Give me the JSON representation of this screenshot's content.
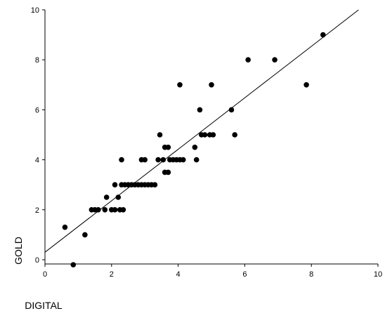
{
  "chart_data": {
    "type": "scatter",
    "title": "",
    "xlabel": "DIGITAL",
    "ylabel": "GOLD",
    "xlim": [
      0,
      10
    ],
    "ylim": [
      0,
      10
    ],
    "xticks": [
      "0",
      "2",
      "4",
      "6",
      "8",
      "10"
    ],
    "yticks": [
      "0",
      "2",
      "4",
      "6",
      "8",
      "10"
    ],
    "grid": false,
    "legend": "none",
    "marker_color": "#000000",
    "fit_line": {
      "intercept": 0.3,
      "slope": 1.03
    },
    "points": [
      {
        "x": 0.6,
        "y": 1.3
      },
      {
        "x": 0.85,
        "y": -0.2
      },
      {
        "x": 1.2,
        "y": 1.0
      },
      {
        "x": 1.4,
        "y": 2.0
      },
      {
        "x": 1.5,
        "y": 2.0
      },
      {
        "x": 1.6,
        "y": 2.0
      },
      {
        "x": 1.8,
        "y": 2.0
      },
      {
        "x": 1.85,
        "y": 2.5
      },
      {
        "x": 2.0,
        "y": 2.0
      },
      {
        "x": 2.1,
        "y": 2.0
      },
      {
        "x": 2.1,
        "y": 3.0
      },
      {
        "x": 2.2,
        "y": 2.5
      },
      {
        "x": 2.25,
        "y": 2.0
      },
      {
        "x": 2.3,
        "y": 4.0
      },
      {
        "x": 2.3,
        "y": 3.0
      },
      {
        "x": 2.35,
        "y": 2.0
      },
      {
        "x": 2.4,
        "y": 3.0
      },
      {
        "x": 2.5,
        "y": 3.0
      },
      {
        "x": 2.6,
        "y": 3.0
      },
      {
        "x": 2.7,
        "y": 3.0
      },
      {
        "x": 2.8,
        "y": 3.0
      },
      {
        "x": 2.9,
        "y": 3.0
      },
      {
        "x": 2.9,
        "y": 4.0
      },
      {
        "x": 3.0,
        "y": 3.0
      },
      {
        "x": 3.0,
        "y": 4.0
      },
      {
        "x": 3.1,
        "y": 3.0
      },
      {
        "x": 3.2,
        "y": 3.0
      },
      {
        "x": 3.3,
        "y": 3.0
      },
      {
        "x": 3.4,
        "y": 4.0
      },
      {
        "x": 3.45,
        "y": 5.0
      },
      {
        "x": 3.55,
        "y": 4.0
      },
      {
        "x": 3.6,
        "y": 3.5
      },
      {
        "x": 3.6,
        "y": 4.5
      },
      {
        "x": 3.7,
        "y": 4.5
      },
      {
        "x": 3.7,
        "y": 3.5
      },
      {
        "x": 3.75,
        "y": 4.0
      },
      {
        "x": 3.85,
        "y": 4.0
      },
      {
        "x": 3.95,
        "y": 4.0
      },
      {
        "x": 4.05,
        "y": 7.0
      },
      {
        "x": 4.05,
        "y": 4.0
      },
      {
        "x": 4.15,
        "y": 4.0
      },
      {
        "x": 4.5,
        "y": 4.5
      },
      {
        "x": 4.55,
        "y": 4.0
      },
      {
        "x": 4.65,
        "y": 6.0
      },
      {
        "x": 4.7,
        "y": 5.0
      },
      {
        "x": 4.8,
        "y": 5.0
      },
      {
        "x": 4.95,
        "y": 5.0
      },
      {
        "x": 5.0,
        "y": 7.0
      },
      {
        "x": 5.05,
        "y": 5.0
      },
      {
        "x": 5.6,
        "y": 6.0
      },
      {
        "x": 5.7,
        "y": 5.0
      },
      {
        "x": 6.1,
        "y": 8.0
      },
      {
        "x": 6.9,
        "y": 8.0
      },
      {
        "x": 7.85,
        "y": 7.0
      },
      {
        "x": 8.35,
        "y": 9.0
      }
    ]
  }
}
